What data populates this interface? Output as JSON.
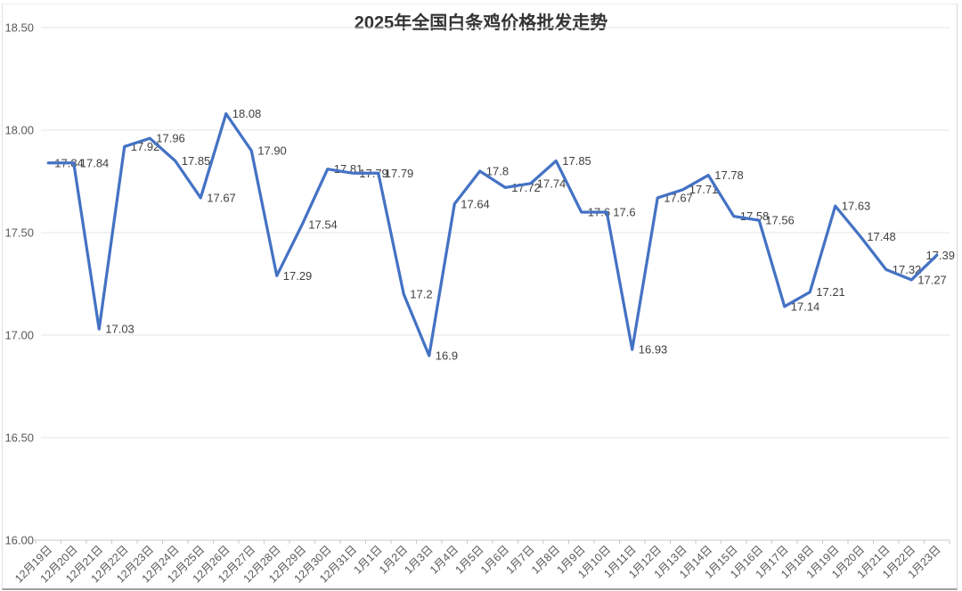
{
  "chart_data": {
    "type": "line",
    "title": "2025年全国白条鸡价格批发走势",
    "categories": [
      "12月19日",
      "12月20日",
      "12月21日",
      "12月22日",
      "12月23日",
      "12月24日",
      "12月25日",
      "12月26日",
      "12月27日",
      "12月28日",
      "12月29日",
      "12月30日",
      "12月31日",
      "1月1日",
      "1月2日",
      "1月3日",
      "1月4日",
      "1月5日",
      "1月6日",
      "1月7日",
      "1月8日",
      "1月9日",
      "1月10日",
      "1月11日",
      "1月12日",
      "1月13日",
      "1月14日",
      "1月15日",
      "1月16日",
      "1月17日",
      "1月18日",
      "1月19日",
      "1月20日",
      "1月21日",
      "1月22日",
      "1月23日"
    ],
    "series": [
      {
        "values": [
          17.84,
          17.84,
          17.03,
          17.92,
          17.96,
          17.85,
          17.67,
          18.08,
          17.9,
          17.29,
          17.54,
          17.81,
          17.79,
          17.79,
          17.2,
          16.9,
          17.64,
          17.8,
          17.72,
          17.74,
          17.85,
          17.6,
          17.6,
          16.93,
          17.67,
          17.71,
          17.78,
          17.58,
          17.56,
          17.14,
          17.21,
          17.63,
          17.48,
          17.32,
          17.27,
          17.39
        ],
        "data_labels": [
          "17.84",
          "17.84",
          "17.03",
          "17.92",
          "17.96",
          "17.85",
          "17.67",
          "18.08",
          "17.90",
          "17.29",
          "17.54",
          "17.81",
          "17.79",
          "17.79",
          "17.2",
          "16.9",
          "17.64",
          "17.8",
          "17.72",
          "17.74",
          "17.85",
          "17.6",
          "17.6",
          "16.93",
          "17.67",
          "17.71",
          "17.78",
          "17.58",
          "17.56",
          "17.14",
          "17.21",
          "17.63",
          "17.48",
          "17.32",
          "17.27",
          "17.39"
        ],
        "color": "#4472C4"
      }
    ],
    "xlabel": "",
    "ylabel": "",
    "y_axis": {
      "min": 16.0,
      "max": 18.5,
      "tick_interval": 0.5,
      "tick_labels": [
        "18.50",
        "18.00",
        "17.50",
        "17.00",
        "16.50",
        "16.00"
      ]
    },
    "grid": "horizontal",
    "legend": "none",
    "data_label_position": "right",
    "x_label_rotation_deg": 45,
    "colors": {
      "series_line": "#4472C4",
      "data_label": "#404040",
      "axis_label": "#595959",
      "gridline": "#E4E4E4",
      "axis_line": "#C9C9C9",
      "title": "#333333",
      "background": "#FFFFFF"
    }
  }
}
